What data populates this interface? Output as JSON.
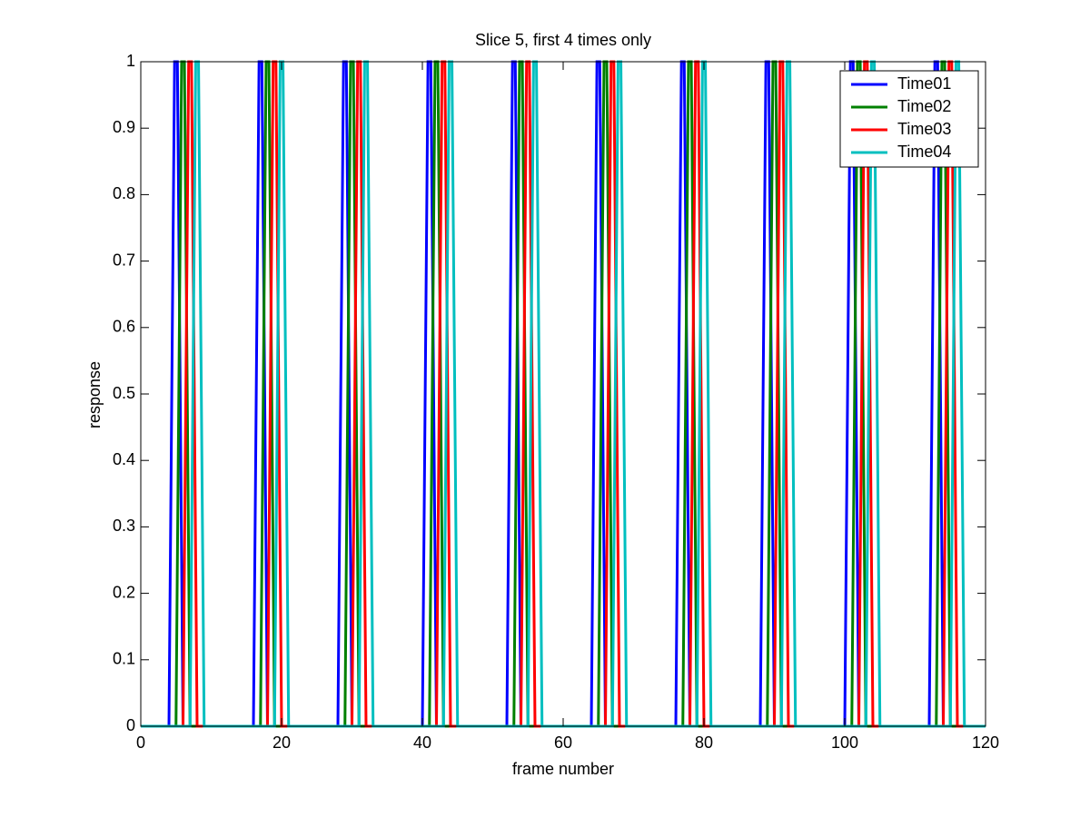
{
  "chart_data": {
    "type": "line",
    "title": "Slice 5, first 4 times only",
    "xlabel": "frame number",
    "ylabel": "response",
    "xlim": [
      0,
      120
    ],
    "xticks": [
      0,
      20,
      40,
      60,
      80,
      100,
      120
    ],
    "ylim": [
      0,
      1
    ],
    "yticks": [
      0,
      0.1,
      0.2,
      0.3,
      0.4,
      0.5,
      0.6,
      0.7,
      0.8,
      0.9,
      1
    ],
    "legend": "upper right",
    "series": [
      {
        "name": "Time01",
        "color": "#0000ff",
        "x": [
          0,
          4,
          4.8,
          5.2,
          6,
          16,
          16.8,
          17.2,
          18,
          28,
          28.8,
          29.2,
          30,
          40,
          40.8,
          41.2,
          42,
          52,
          52.8,
          53.2,
          54,
          64,
          64.8,
          65.2,
          66,
          76,
          76.8,
          77.2,
          78,
          88,
          88.8,
          89.2,
          90,
          100,
          100.8,
          101.2,
          102,
          112,
          112.8,
          113.2,
          114,
          120
        ],
        "values": [
          0,
          0,
          1,
          1,
          0,
          0,
          1,
          1,
          0,
          0,
          1,
          1,
          0,
          0,
          1,
          1,
          0,
          0,
          1,
          1,
          0,
          0,
          1,
          1,
          0,
          0,
          1,
          1,
          0,
          0,
          1,
          1,
          0,
          0,
          1,
          1,
          0,
          0,
          1,
          1,
          0,
          0
        ]
      },
      {
        "name": "Time02",
        "color": "#008000",
        "x": [
          0,
          5,
          5.8,
          6.2,
          7,
          17,
          17.8,
          18.2,
          19,
          29,
          29.8,
          30.2,
          31,
          41,
          41.8,
          42.2,
          43,
          53,
          53.8,
          54.2,
          55,
          65,
          65.8,
          66.2,
          67,
          77,
          77.8,
          78.2,
          79,
          89,
          89.8,
          90.2,
          91,
          101,
          101.8,
          102.2,
          103,
          113,
          113.8,
          114.2,
          115,
          120
        ],
        "values": [
          0,
          0,
          1,
          1,
          0,
          0,
          1,
          1,
          0,
          0,
          1,
          1,
          0,
          0,
          1,
          1,
          0,
          0,
          1,
          1,
          0,
          0,
          1,
          1,
          0,
          0,
          1,
          1,
          0,
          0,
          1,
          1,
          0,
          0,
          1,
          1,
          0,
          0,
          1,
          1,
          0,
          0
        ]
      },
      {
        "name": "Time03",
        "color": "#ff0000",
        "x": [
          0,
          6,
          6.8,
          7.2,
          8,
          18,
          18.8,
          19.2,
          20,
          30,
          30.8,
          31.2,
          32,
          42,
          42.8,
          43.2,
          44,
          54,
          54.8,
          55.2,
          56,
          66,
          66.8,
          67.2,
          68,
          78,
          78.8,
          79.2,
          80,
          90,
          90.8,
          91.2,
          92,
          102,
          102.8,
          103.2,
          104,
          114,
          114.8,
          115.2,
          116,
          120
        ],
        "values": [
          0,
          0,
          1,
          1,
          0,
          0,
          1,
          1,
          0,
          0,
          1,
          1,
          0,
          0,
          1,
          1,
          0,
          0,
          1,
          1,
          0,
          0,
          1,
          1,
          0,
          0,
          1,
          1,
          0,
          0,
          1,
          1,
          0,
          0,
          1,
          1,
          0,
          0,
          1,
          1,
          0,
          0
        ]
      },
      {
        "name": "Time04",
        "color": "#00bfbf",
        "x": [
          0,
          7,
          7.8,
          8.2,
          9,
          19,
          19.8,
          20.2,
          21,
          31,
          31.8,
          32.2,
          33,
          43,
          43.8,
          44.2,
          45,
          55,
          55.8,
          56.2,
          57,
          67,
          67.8,
          68.2,
          69,
          79,
          79.8,
          80.2,
          81,
          91,
          91.8,
          92.2,
          93,
          103,
          103.8,
          104.2,
          105,
          115,
          115.8,
          116.2,
          117,
          120
        ],
        "values": [
          0,
          0,
          1,
          1,
          0,
          0,
          1,
          1,
          0,
          0,
          1,
          1,
          0,
          0,
          1,
          1,
          0,
          0,
          1,
          1,
          0,
          0,
          1,
          1,
          0,
          0,
          1,
          1,
          0,
          0,
          1,
          1,
          0,
          0,
          1,
          1,
          0,
          0,
          1,
          1,
          0,
          0
        ]
      }
    ]
  }
}
